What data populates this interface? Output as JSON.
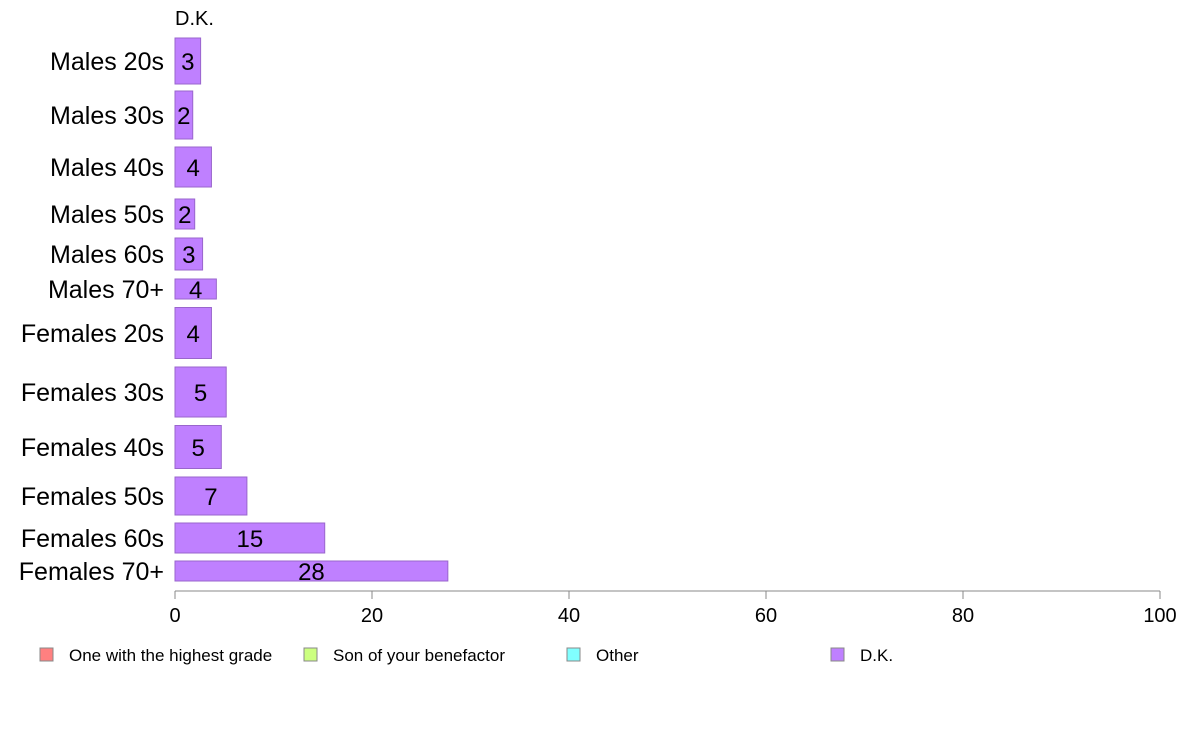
{
  "chart_data": {
    "type": "bar",
    "orientation": "horizontal",
    "stacked": true,
    "series_header": "D.K.",
    "categories": [
      "Males 20s",
      "Males 30s",
      "Males 40s",
      "Males 50s",
      "Males 60s",
      "Males 70+",
      "Females 20s",
      "Females 30s",
      "Females 40s",
      "Females 50s",
      "Females 60s",
      "Females 70+"
    ],
    "series": [
      {
        "name": "One with the highest grade",
        "color": "#ff8080",
        "values": [
          0,
          0,
          0,
          0,
          0,
          0,
          0,
          0,
          0,
          0,
          0,
          0
        ]
      },
      {
        "name": "Son of your benefactor",
        "color": "#ccff80",
        "values": [
          0,
          0,
          0,
          0,
          0,
          0,
          0,
          0,
          0,
          0,
          0,
          0
        ]
      },
      {
        "name": "Other",
        "color": "#80ffff",
        "values": [
          0,
          0,
          0,
          0,
          0,
          0,
          0,
          0,
          0,
          0,
          0,
          0
        ]
      },
      {
        "name": "D.K.",
        "color": "#bf80ff",
        "values": [
          2.6,
          1.8,
          3.7,
          2.0,
          2.8,
          4.2,
          3.7,
          5.2,
          4.7,
          7.3,
          15.2,
          27.7
        ]
      }
    ],
    "data_labels": [
      "3",
      "2",
      "4",
      "2",
      "3",
      "4",
      "4",
      "5",
      "5",
      "7",
      "15",
      "28"
    ],
    "xlim": [
      0,
      100
    ],
    "x_ticks": [
      "0",
      "20",
      "40",
      "60",
      "80",
      "100"
    ],
    "legend_position": "bottom",
    "grid": false
  }
}
